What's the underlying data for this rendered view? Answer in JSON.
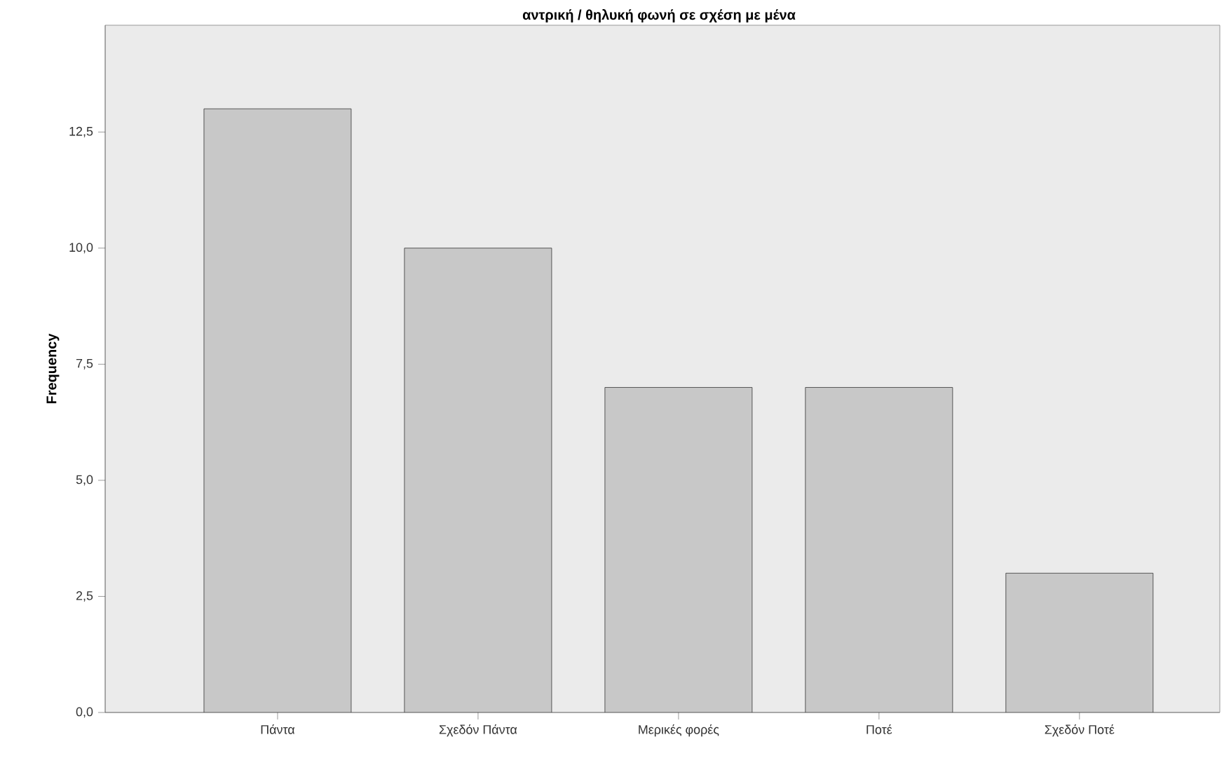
{
  "chart_data": {
    "type": "bar",
    "title": "αντρική / θηλυκή φωνή σε σχέση με μένα",
    "ylabel": "Frequency",
    "categories": [
      "Πάντα",
      "Σχεδόν Πάντα",
      "Μερικές φορές",
      "Ποτέ",
      "Σχεδόν Ποτέ"
    ],
    "values": [
      13,
      10,
      7,
      7,
      3
    ],
    "color": "#c8c8c8",
    "ylim": [
      0,
      14.8
    ],
    "yticks": [
      {
        "value": 0,
        "label": "0,0"
      },
      {
        "value": 2.5,
        "label": "2,5"
      },
      {
        "value": 5,
        "label": "5,0"
      },
      {
        "value": 7.5,
        "label": "7,5"
      },
      {
        "value": 10,
        "label": "10,0"
      },
      {
        "value": 12.5,
        "label": "12,5"
      }
    ],
    "grid": false
  }
}
